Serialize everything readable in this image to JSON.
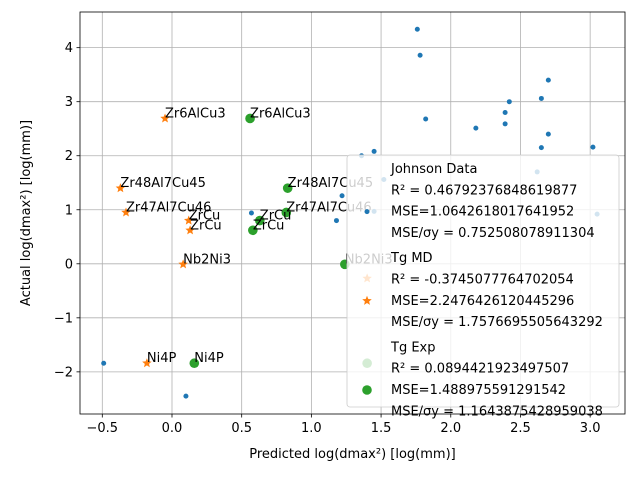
{
  "chart_data": {
    "type": "scatter",
    "title": "",
    "xlabel": "Predicted log(dmax²) [log(mm)]",
    "ylabel": "Actual log(dmax²) [log(mm)]",
    "xlim": [
      -0.66,
      3.25
    ],
    "ylim": [
      -2.78,
      4.66
    ],
    "xticks": [
      -0.5,
      0.0,
      0.5,
      1.0,
      1.5,
      2.0,
      2.5,
      3.0
    ],
    "xtick_labels": [
      "−0.5",
      "0.0",
      "0.5",
      "1.0",
      "1.5",
      "2.0",
      "2.5",
      "3.0"
    ],
    "yticks": [
      -2,
      -1,
      0,
      1,
      2,
      3,
      4
    ],
    "ytick_labels": [
      "−2",
      "−1",
      "0",
      "1",
      "2",
      "3",
      "4"
    ],
    "grid": true,
    "legend_position": "lower-right",
    "series": [
      {
        "name": "Johnson Data",
        "marker": "circle-small",
        "color": "#1f77b4",
        "points": [
          [
            -0.49,
            -1.84
          ],
          [
            0.1,
            -2.45
          ],
          [
            0.57,
            0.94
          ],
          [
            1.22,
            1.26
          ],
          [
            1.18,
            0.8
          ],
          [
            1.36,
            2.0
          ],
          [
            1.45,
            2.08
          ],
          [
            1.52,
            1.56
          ],
          [
            1.45,
            0.97
          ],
          [
            1.76,
            4.34
          ],
          [
            1.78,
            3.86
          ],
          [
            1.82,
            2.68
          ],
          [
            2.18,
            2.51
          ],
          [
            2.39,
            2.8
          ],
          [
            2.42,
            3.0
          ],
          [
            2.39,
            2.59
          ],
          [
            2.65,
            3.06
          ],
          [
            2.7,
            3.4
          ],
          [
            2.7,
            2.4
          ],
          [
            2.65,
            2.15
          ],
          [
            2.62,
            1.7
          ],
          [
            3.02,
            2.16
          ],
          [
            3.05,
            0.92
          ]
        ]
      },
      {
        "name": "T_g MD",
        "marker": "star",
        "color": "#ff7f0e",
        "points": [
          [
            -0.05,
            2.69
          ],
          [
            -0.37,
            1.4
          ],
          [
            -0.33,
            0.95
          ],
          [
            0.12,
            0.8
          ],
          [
            0.13,
            0.62
          ],
          [
            0.08,
            -0.01
          ],
          [
            -0.18,
            -1.84
          ],
          [
            1.4,
            -0.27
          ]
        ]
      },
      {
        "name": "T_g Exp",
        "marker": "circle-large",
        "color": "#2ca02c",
        "points": [
          [
            0.56,
            2.69
          ],
          [
            0.83,
            1.4
          ],
          [
            0.82,
            0.95
          ],
          [
            0.63,
            0.8
          ],
          [
            0.58,
            0.62
          ],
          [
            1.24,
            -0.01
          ],
          [
            0.16,
            -1.84
          ],
          [
            1.4,
            -1.84
          ]
        ]
      }
    ],
    "annotations": [
      {
        "text": "Zr6AlCu3",
        "x": -0.05,
        "y": 2.69
      },
      {
        "text": "Zr48Al7Cu45",
        "x": -0.37,
        "y": 1.4
      },
      {
        "text": "Zr47Al7Cu46",
        "x": -0.33,
        "y": 0.95
      },
      {
        "text": "ZrCu",
        "x": 0.12,
        "y": 0.8
      },
      {
        "text": "ZrCu",
        "x": 0.13,
        "y": 0.62
      },
      {
        "text": "Nb2Ni3",
        "x": 0.08,
        "y": -0.01
      },
      {
        "text": "Ni4P",
        "x": -0.18,
        "y": -1.84
      },
      {
        "text": "Zr6AlCu3",
        "x": 0.56,
        "y": 2.69
      },
      {
        "text": "Zr48Al7Cu45",
        "x": 0.83,
        "y": 1.4
      },
      {
        "text": "Zr47Al7Cu46",
        "x": 0.82,
        "y": 0.95
      },
      {
        "text": "ZrCu",
        "x": 0.63,
        "y": 0.8
      },
      {
        "text": "ZrCu",
        "x": 0.58,
        "y": 0.62
      },
      {
        "text": "Nb2Ni3",
        "x": 1.24,
        "y": -0.01
      },
      {
        "text": "Ni4P",
        "x": 0.16,
        "y": -1.84
      }
    ],
    "legend": [
      {
        "series": "Johnson Data",
        "lines": [
          "Johnson Data",
          "R² = 0.46792376848619877",
          "MSE=1.0642618017641952",
          "MSE/σy = 0.752508078911304"
        ]
      },
      {
        "series": "T_g MD",
        "lines": [
          "Tg MD",
          "R² = -0.3745077764702054",
          "MSE=2.2476426120445296",
          "MSE/σy = 1.7576695505643292"
        ]
      },
      {
        "series": "T_g Exp",
        "lines": [
          "Tg Exp",
          "R² = 0.0894421923497507",
          "MSE=1.488975591291542",
          "MSE/σy = 1.1643875428959038"
        ]
      }
    ]
  }
}
